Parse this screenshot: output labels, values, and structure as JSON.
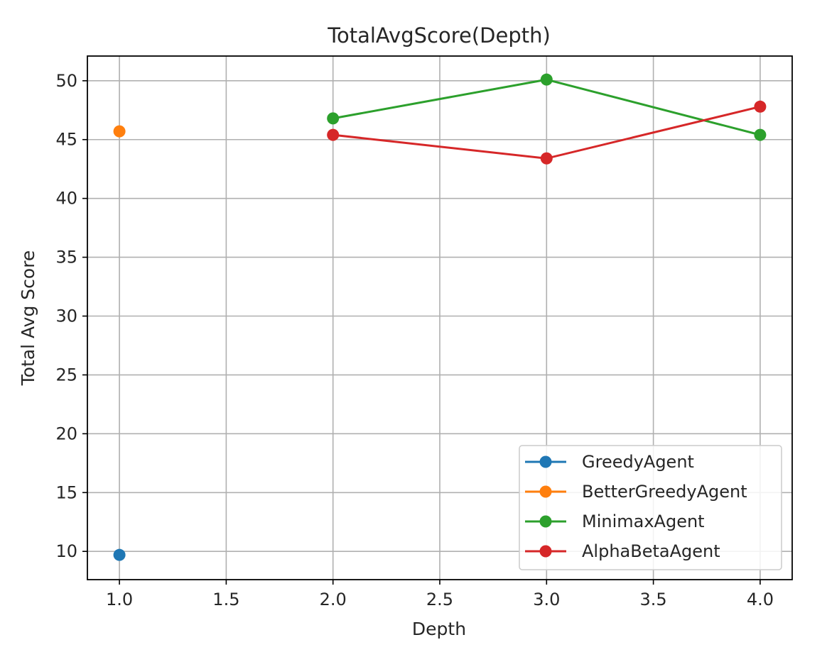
{
  "chart_data": {
    "type": "line",
    "title": "TotalAvgScore(Depth)",
    "xlabel": "Depth",
    "ylabel": "Total Avg Score",
    "xlim": [
      0.85,
      4.15
    ],
    "ylim": [
      7.6,
      52.1
    ],
    "xticks": [
      1.0,
      1.5,
      2.0,
      2.5,
      3.0,
      3.5,
      4.0
    ],
    "xtick_labels": [
      "1.0",
      "1.5",
      "2.0",
      "2.5",
      "3.0",
      "3.5",
      "4.0"
    ],
    "yticks": [
      10,
      15,
      20,
      25,
      30,
      35,
      40,
      45,
      50
    ],
    "ytick_labels": [
      "10",
      "15",
      "20",
      "25",
      "30",
      "35",
      "40",
      "45",
      "50"
    ],
    "grid": true,
    "legend_position": "lower-right",
    "series": [
      {
        "name": "GreedyAgent",
        "color": "#1f77b4",
        "x": [
          1.0
        ],
        "y": [
          9.7
        ]
      },
      {
        "name": "BetterGreedyAgent",
        "color": "#ff7f0e",
        "x": [
          1.0
        ],
        "y": [
          45.7
        ]
      },
      {
        "name": "MinimaxAgent",
        "color": "#2ca02c",
        "x": [
          2.0,
          3.0,
          4.0
        ],
        "y": [
          46.8,
          50.1,
          45.4
        ]
      },
      {
        "name": "AlphaBetaAgent",
        "color": "#d62728",
        "x": [
          2.0,
          3.0,
          4.0
        ],
        "y": [
          45.4,
          43.4,
          47.8
        ]
      }
    ]
  }
}
